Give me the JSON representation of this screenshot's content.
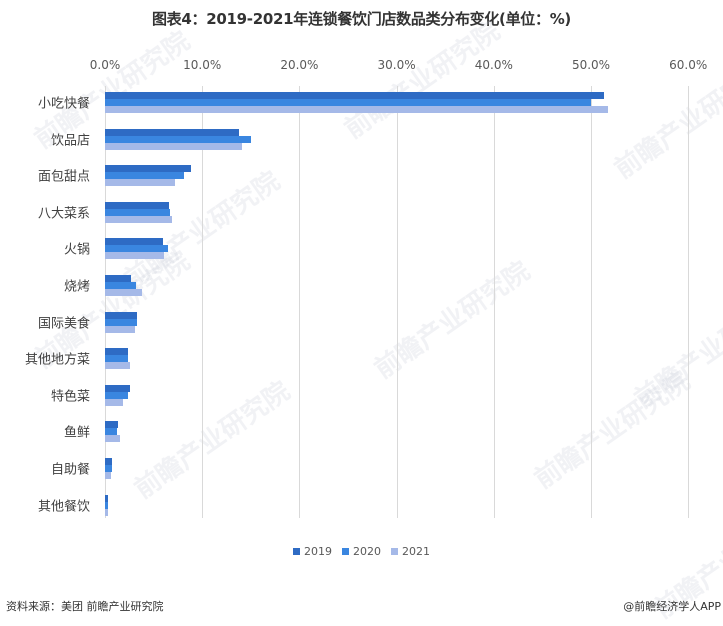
{
  "title": "图表4：2019-2021年连锁餐饮门店数品类分布变化(单位：%)",
  "source": "资料来源：美团 前瞻产业研究院",
  "credit": "@前瞻经济学人APP",
  "watermark_text": "前瞻产业研究院",
  "colors": {
    "2019": "#2e6bc4",
    "2020": "#3a86e0",
    "2021": "#a5b9e8"
  },
  "chart_data": {
    "type": "bar",
    "orientation": "horizontal",
    "title": "图表4：2019-2021年连锁餐饮门店数品类分布变化(单位：%)",
    "xlabel": "",
    "ylabel": "",
    "xlim": [
      0,
      60
    ],
    "x_ticks": [
      "0.0%",
      "10.0%",
      "20.0%",
      "30.0%",
      "40.0%",
      "50.0%",
      "60.0%"
    ],
    "x_axis_position": "top",
    "grid": true,
    "legend_position": "bottom",
    "categories": [
      "小吃快餐",
      "饮品店",
      "面包甜点",
      "八大菜系",
      "火锅",
      "烧烤",
      "国际美食",
      "其他地方菜",
      "特色菜",
      "鱼鲜",
      "自助餐",
      "其他餐饮"
    ],
    "series": [
      {
        "name": "2019",
        "values": [
          51.3,
          13.8,
          8.8,
          6.6,
          6.0,
          2.7,
          3.3,
          2.4,
          2.6,
          1.3,
          0.7,
          0.3
        ]
      },
      {
        "name": "2020",
        "values": [
          50.0,
          15.0,
          8.1,
          6.7,
          6.5,
          3.2,
          3.3,
          2.4,
          2.4,
          1.2,
          0.7,
          0.3
        ]
      },
      {
        "name": "2021",
        "values": [
          51.8,
          14.1,
          7.2,
          6.9,
          6.1,
          3.8,
          3.1,
          2.6,
          1.9,
          1.5,
          0.6,
          0.3
        ]
      }
    ]
  }
}
